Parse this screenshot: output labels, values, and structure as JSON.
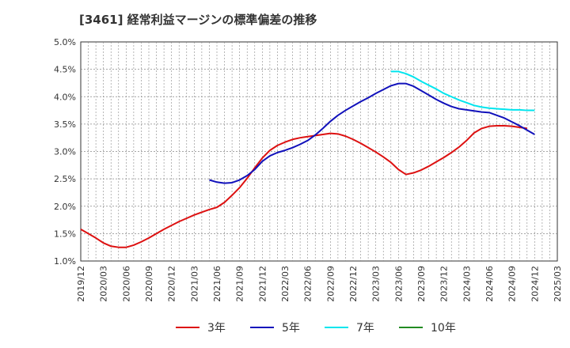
{
  "title": "[3461]  経常利益マージンの標準偏差の推移",
  "chart_data": {
    "type": "line",
    "title": "[3461]  経常利益マージンの標準偏差の推移",
    "xlabel": "",
    "ylabel": "",
    "x_ticks": [
      "2019/12",
      "2020/03",
      "2020/06",
      "2020/09",
      "2020/12",
      "2021/03",
      "2021/06",
      "2021/09",
      "2021/12",
      "2022/03",
      "2022/06",
      "2022/09",
      "2022/12",
      "2023/03",
      "2023/06",
      "2023/09",
      "2023/12",
      "2024/03",
      "2024/06",
      "2024/09",
      "2024/12",
      "2025/03"
    ],
    "y_ticks": [
      "1.0%",
      "1.5%",
      "2.0%",
      "2.5%",
      "3.0%",
      "3.5%",
      "4.0%",
      "4.5%",
      "5.0%"
    ],
    "ylim": [
      1.0,
      5.0
    ],
    "grid": true,
    "legend_position": "bottom",
    "series": [
      {
        "name": "3年",
        "color": "#dd1111",
        "points": [
          [
            "2019/12",
            1.58
          ],
          [
            "2020/01",
            1.5
          ],
          [
            "2020/02",
            1.42
          ],
          [
            "2020/03",
            1.33
          ],
          [
            "2020/04",
            1.27
          ],
          [
            "2020/05",
            1.25
          ],
          [
            "2020/06",
            1.25
          ],
          [
            "2020/07",
            1.29
          ],
          [
            "2020/08",
            1.35
          ],
          [
            "2020/09",
            1.42
          ],
          [
            "2020/10",
            1.5
          ],
          [
            "2020/11",
            1.58
          ],
          [
            "2020/12",
            1.65
          ],
          [
            "2021/01",
            1.72
          ],
          [
            "2021/02",
            1.78
          ],
          [
            "2021/03",
            1.84
          ],
          [
            "2021/04",
            1.89
          ],
          [
            "2021/05",
            1.94
          ],
          [
            "2021/06",
            1.98
          ],
          [
            "2021/07",
            2.07
          ],
          [
            "2021/08",
            2.2
          ],
          [
            "2021/09",
            2.34
          ],
          [
            "2021/10",
            2.51
          ],
          [
            "2021/11",
            2.7
          ],
          [
            "2021/12",
            2.88
          ],
          [
            "2022/01",
            3.02
          ],
          [
            "2022/02",
            3.11
          ],
          [
            "2022/03",
            3.17
          ],
          [
            "2022/04",
            3.22
          ],
          [
            "2022/05",
            3.25
          ],
          [
            "2022/06",
            3.27
          ],
          [
            "2022/07",
            3.29
          ],
          [
            "2022/08",
            3.31
          ],
          [
            "2022/09",
            3.33
          ],
          [
            "2022/10",
            3.32
          ],
          [
            "2022/11",
            3.28
          ],
          [
            "2022/12",
            3.22
          ],
          [
            "2023/01",
            3.15
          ],
          [
            "2023/02",
            3.07
          ],
          [
            "2023/03",
            2.99
          ],
          [
            "2023/04",
            2.9
          ],
          [
            "2023/05",
            2.8
          ],
          [
            "2023/06",
            2.67
          ],
          [
            "2023/07",
            2.58
          ],
          [
            "2023/08",
            2.61
          ],
          [
            "2023/09",
            2.66
          ],
          [
            "2023/10",
            2.73
          ],
          [
            "2023/11",
            2.81
          ],
          [
            "2023/12",
            2.89
          ],
          [
            "2024/01",
            2.98
          ],
          [
            "2024/02",
            3.08
          ],
          [
            "2024/03",
            3.2
          ],
          [
            "2024/04",
            3.34
          ],
          [
            "2024/05",
            3.42
          ],
          [
            "2024/06",
            3.46
          ],
          [
            "2024/07",
            3.47
          ],
          [
            "2024/08",
            3.47
          ],
          [
            "2024/09",
            3.46
          ],
          [
            "2024/10",
            3.44
          ],
          [
            "2024/11",
            3.42
          ]
        ]
      },
      {
        "name": "5年",
        "color": "#1111bb",
        "points": [
          [
            "2021/05",
            2.48
          ],
          [
            "2021/06",
            2.44
          ],
          [
            "2021/07",
            2.42
          ],
          [
            "2021/08",
            2.43
          ],
          [
            "2021/09",
            2.48
          ],
          [
            "2021/10",
            2.56
          ],
          [
            "2021/11",
            2.67
          ],
          [
            "2021/12",
            2.82
          ],
          [
            "2022/01",
            2.92
          ],
          [
            "2022/02",
            2.98
          ],
          [
            "2022/03",
            3.02
          ],
          [
            "2022/04",
            3.07
          ],
          [
            "2022/05",
            3.13
          ],
          [
            "2022/06",
            3.2
          ],
          [
            "2022/07",
            3.3
          ],
          [
            "2022/08",
            3.42
          ],
          [
            "2022/09",
            3.55
          ],
          [
            "2022/10",
            3.66
          ],
          [
            "2022/11",
            3.75
          ],
          [
            "2022/12",
            3.83
          ],
          [
            "2023/01",
            3.91
          ],
          [
            "2023/02",
            3.98
          ],
          [
            "2023/03",
            4.06
          ],
          [
            "2023/04",
            4.13
          ],
          [
            "2023/05",
            4.2
          ],
          [
            "2023/06",
            4.24
          ],
          [
            "2023/07",
            4.24
          ],
          [
            "2023/08",
            4.19
          ],
          [
            "2023/09",
            4.11
          ],
          [
            "2023/10",
            4.03
          ],
          [
            "2023/11",
            3.95
          ],
          [
            "2023/12",
            3.88
          ],
          [
            "2024/01",
            3.82
          ],
          [
            "2024/02",
            3.78
          ],
          [
            "2024/03",
            3.76
          ],
          [
            "2024/04",
            3.74
          ],
          [
            "2024/05",
            3.72
          ],
          [
            "2024/06",
            3.71
          ],
          [
            "2024/07",
            3.66
          ],
          [
            "2024/08",
            3.61
          ],
          [
            "2024/09",
            3.54
          ],
          [
            "2024/10",
            3.47
          ],
          [
            "2024/11",
            3.39
          ],
          [
            "2024/12",
            3.31
          ]
        ]
      },
      {
        "name": "7年",
        "color": "#00e5ee",
        "points": [
          [
            "2023/05",
            4.46
          ],
          [
            "2023/06",
            4.46
          ],
          [
            "2023/07",
            4.42
          ],
          [
            "2023/08",
            4.36
          ],
          [
            "2023/09",
            4.28
          ],
          [
            "2023/10",
            4.21
          ],
          [
            "2023/11",
            4.14
          ],
          [
            "2023/12",
            4.06
          ],
          [
            "2024/01",
            4.0
          ],
          [
            "2024/02",
            3.94
          ],
          [
            "2024/03",
            3.89
          ],
          [
            "2024/04",
            3.84
          ],
          [
            "2024/05",
            3.81
          ],
          [
            "2024/06",
            3.79
          ],
          [
            "2024/07",
            3.78
          ],
          [
            "2024/08",
            3.77
          ],
          [
            "2024/09",
            3.76
          ],
          [
            "2024/10",
            3.76
          ],
          [
            "2024/11",
            3.75
          ],
          [
            "2024/12",
            3.75
          ]
        ]
      },
      {
        "name": "10年",
        "color": "#228b22",
        "points": []
      }
    ]
  }
}
